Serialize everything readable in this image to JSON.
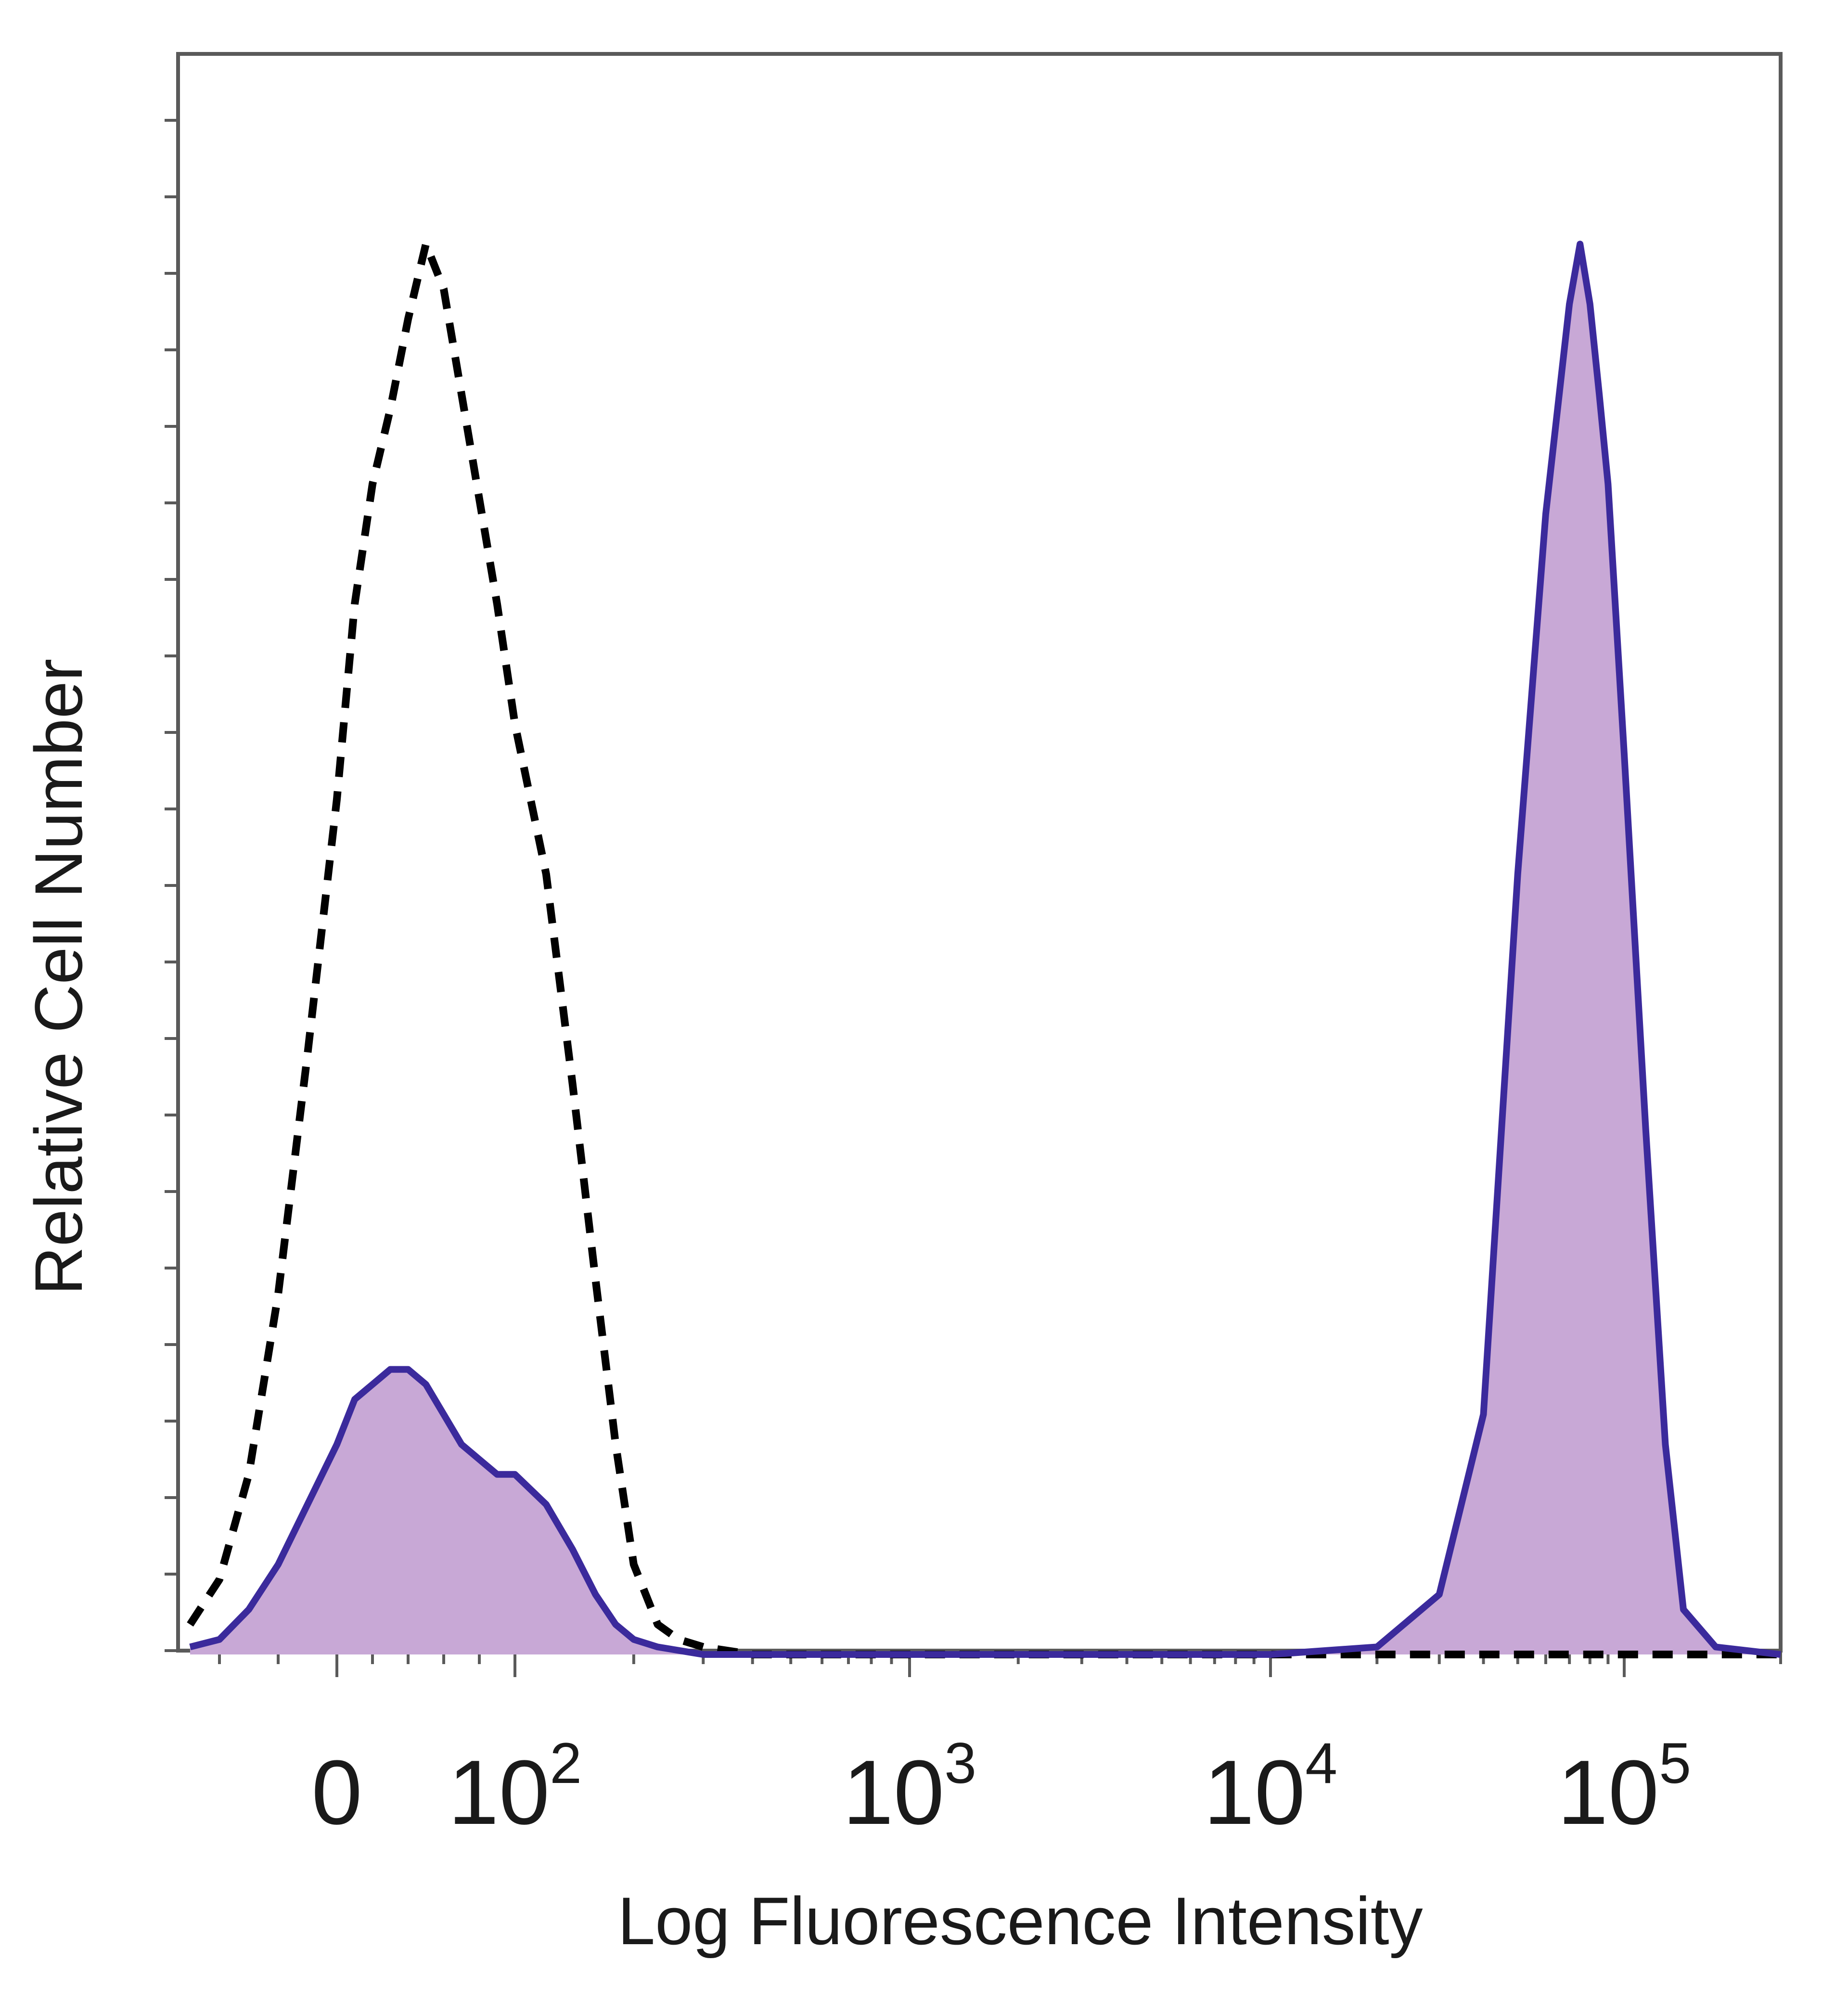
{
  "chart_data": {
    "type": "area",
    "xlabel": "Log Fluorescence Intensity",
    "ylabel": "Relative Cell Number",
    "x_scale": "biexponential",
    "xlim": [
      -50,
      200000
    ],
    "ylim": [
      0,
      100
    ],
    "x_ticks": [
      {
        "value": 0,
        "base": "0",
        "exp": ""
      },
      {
        "value": 100,
        "base": "10",
        "exp": "2"
      },
      {
        "value": 1000,
        "base": "10",
        "exp": "3"
      },
      {
        "value": 10000,
        "base": "10",
        "exp": "4"
      },
      {
        "value": 100000,
        "base": "10",
        "exp": "5"
      }
    ],
    "series": [
      {
        "style": "dashed-outline",
        "color": "#000000",
        "x": [
          -50,
          -40,
          -30,
          -20,
          -10,
          0,
          10,
          20,
          30,
          40,
          50,
          60,
          70,
          80,
          90,
          100,
          120,
          140,
          160,
          180,
          200,
          230,
          260,
          300,
          400,
          1000,
          10000,
          30000,
          60000,
          100000,
          200000
        ],
        "values": [
          2,
          5,
          12,
          24,
          40,
          57,
          70,
          78,
          83,
          89,
          94,
          91,
          84,
          77,
          70,
          62,
          52,
          38,
          25,
          14,
          6,
          2,
          1,
          0.5,
          0,
          0,
          0,
          0,
          0,
          0,
          0
        ]
      },
      {
        "style": "filled",
        "color": "#3b2a9c",
        "fill": "#c8a8d6",
        "x": [
          -50,
          -40,
          -30,
          -20,
          -10,
          0,
          10,
          20,
          30,
          40,
          50,
          60,
          70,
          80,
          90,
          100,
          120,
          140,
          160,
          180,
          200,
          230,
          300,
          1000,
          10000,
          20000,
          30000,
          40000,
          50000,
          60000,
          70000,
          75000,
          80000,
          85000,
          90000,
          100000,
          110000,
          120000,
          130000,
          150000,
          200000
        ],
        "values": [
          0.5,
          1,
          3,
          6,
          10,
          14,
          17,
          18,
          19,
          19,
          18,
          16,
          14,
          13,
          12,
          12,
          10,
          7,
          4,
          2,
          1,
          0.5,
          0,
          0,
          0,
          0.5,
          4,
          16,
          52,
          76,
          90,
          94,
          90,
          84,
          78,
          60,
          35,
          14,
          3,
          0.5,
          0
        ]
      }
    ]
  }
}
